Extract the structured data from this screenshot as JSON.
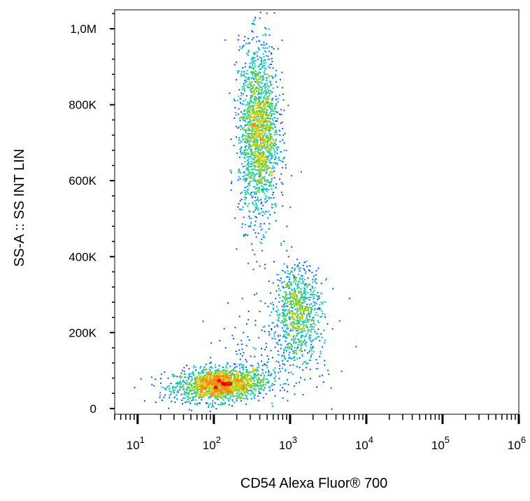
{
  "chart_data": {
    "type": "scatter",
    "subtype": "flow-cytometry density dot plot",
    "xlabel": "CD54 Alexa Fluor® 700",
    "ylabel": "SS-A :: SS INT LIN",
    "x_scale": "log",
    "y_scale": "linear",
    "xlim": [
      5,
      1000000
    ],
    "ylim": [
      -15000,
      1050000
    ],
    "x_ticks": [
      {
        "value": 10,
        "base": "10",
        "exp": "1"
      },
      {
        "value": 100,
        "base": "10",
        "exp": "2"
      },
      {
        "value": 1000,
        "base": "10",
        "exp": "3"
      },
      {
        "value": 10000,
        "base": "10",
        "exp": "4"
      },
      {
        "value": 100000,
        "base": "10",
        "exp": "5"
      },
      {
        "value": 1000000,
        "base": "10",
        "exp": "6"
      }
    ],
    "y_ticks": [
      {
        "value": 0,
        "label": "0"
      },
      {
        "value": 200000,
        "label": "200K"
      },
      {
        "value": 400000,
        "label": "400K"
      },
      {
        "value": 600000,
        "label": "600K"
      },
      {
        "value": 800000,
        "label": "800K"
      },
      {
        "value": 1000000,
        "label": "1,0M"
      }
    ],
    "grid": false,
    "legend": "none",
    "density_colors": [
      "#0000cc",
      "#0055ff",
      "#00aaff",
      "#00ccaa",
      "#66cc33",
      "#cccc00",
      "#ff8800",
      "#ee0000"
    ],
    "populations": [
      {
        "x_center": 120,
        "x_log_sd": 0.3,
        "y_center": 65000,
        "y_sd": 22000,
        "slope": 0.1,
        "points": 1700
      },
      {
        "x_center": 380,
        "x_log_sd": 0.13,
        "y_center": 730000,
        "y_sd": 115000,
        "slope": 0,
        "points": 1900
      },
      {
        "x_center": 1250,
        "x_log_sd": 0.15,
        "y_center": 260000,
        "y_sd": 60000,
        "slope": 0,
        "points": 800
      },
      {
        "x_center": 800,
        "x_log_sd": 0.35,
        "y_center": 170000,
        "y_sd": 70000,
        "slope": 0,
        "points": 250
      }
    ]
  }
}
